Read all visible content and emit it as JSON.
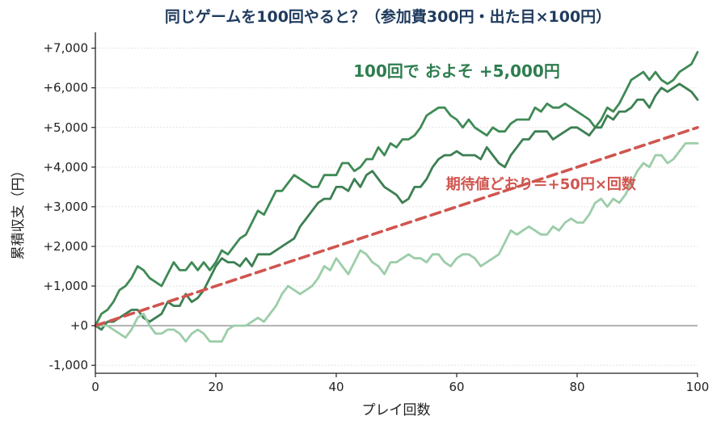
{
  "chart_data": {
    "type": "line",
    "title": "同じゲームを100回やると？（参加費300円・出た目×100円）",
    "xlabel": "プレイ回数",
    "ylabel": "累積収支（円）",
    "xlim": [
      0,
      100
    ],
    "ylim": [
      -1200,
      7400
    ],
    "grid": "y-dotted",
    "x_ticks": [
      0,
      20,
      40,
      60,
      80,
      100
    ],
    "x_tick_labels": [
      "0",
      "20",
      "40",
      "60",
      "80",
      "100"
    ],
    "y_ticks": [
      -1000,
      0,
      1000,
      2000,
      3000,
      4000,
      5000,
      6000,
      7000
    ],
    "y_tick_labels": [
      "-1,000",
      "+0",
      "+1,000",
      "+2,000",
      "+3,000",
      "+4,000",
      "+5,000",
      "+6,000",
      "+7,000"
    ],
    "annotations": [
      {
        "text": "100回で およそ +5,000円",
        "x": 60,
        "y": 6280,
        "color": "#2e7d4f"
      },
      {
        "text": "期待値どおり＝+50円×回数",
        "x": 74,
        "y": 3450,
        "color": "#d0554f"
      }
    ],
    "series": [
      {
        "name": "",
        "color": "#3f8a55",
        "x": [
          0,
          1,
          2,
          3,
          4,
          5,
          6,
          7,
          8,
          9,
          10,
          11,
          12,
          13,
          14,
          15,
          16,
          17,
          18,
          19,
          20,
          21,
          22,
          23,
          24,
          25,
          26,
          27,
          28,
          29,
          30,
          31,
          32,
          33,
          34,
          35,
          36,
          37,
          38,
          39,
          40,
          41,
          42,
          43,
          44,
          45,
          46,
          47,
          48,
          49,
          50,
          51,
          52,
          53,
          54,
          55,
          56,
          57,
          58,
          59,
          60,
          61,
          62,
          63,
          64,
          65,
          66,
          67,
          68,
          69,
          70,
          71,
          72,
          73,
          74,
          75,
          76,
          77,
          78,
          79,
          80,
          81,
          82,
          83,
          84,
          85,
          86,
          87,
          88,
          89,
          90,
          91,
          92,
          93,
          94,
          95,
          96,
          97,
          98,
          99,
          100
        ],
        "values": [
          0,
          300,
          400,
          600,
          900,
          1000,
          1200,
          1500,
          1400,
          1200,
          1100,
          1000,
          1300,
          1600,
          1400,
          1400,
          1600,
          1400,
          1600,
          1400,
          1600,
          1900,
          1800,
          2000,
          2200,
          2300,
          2600,
          2900,
          2800,
          3100,
          3400,
          3400,
          3600,
          3800,
          3700,
          3600,
          3500,
          3500,
          3800,
          3800,
          3800,
          4100,
          4100,
          3900,
          4000,
          4200,
          4200,
          4500,
          4300,
          4600,
          4500,
          4700,
          4700,
          4800,
          5000,
          5300,
          5400,
          5500,
          5500,
          5300,
          5200,
          5000,
          5200,
          5000,
          4900,
          4800,
          5000,
          4900,
          4900,
          5100,
          5200,
          5200,
          5200,
          5500,
          5400,
          5600,
          5500,
          5500,
          5600,
          5500,
          5400,
          5300,
          5200,
          5000,
          5200,
          5500,
          5400,
          5600,
          5900,
          6200,
          6300,
          6400,
          6200,
          6400,
          6200,
          6100,
          6200,
          6400,
          6500,
          6600,
          6900
        ]
      },
      {
        "name": "",
        "color": "#3c7f52",
        "x": [
          0,
          1,
          2,
          3,
          4,
          5,
          6,
          7,
          8,
          9,
          10,
          11,
          12,
          13,
          14,
          15,
          16,
          17,
          18,
          19,
          20,
          21,
          22,
          23,
          24,
          25,
          26,
          27,
          28,
          29,
          30,
          31,
          32,
          33,
          34,
          35,
          36,
          37,
          38,
          39,
          40,
          41,
          42,
          43,
          44,
          45,
          46,
          47,
          48,
          49,
          50,
          51,
          52,
          53,
          54,
          55,
          56,
          57,
          58,
          59,
          60,
          61,
          62,
          63,
          64,
          65,
          66,
          67,
          68,
          69,
          70,
          71,
          72,
          73,
          74,
          75,
          76,
          77,
          78,
          79,
          80,
          81,
          82,
          83,
          84,
          85,
          86,
          87,
          88,
          89,
          90,
          91,
          92,
          93,
          94,
          95,
          96,
          97,
          98,
          99,
          100
        ],
        "values": [
          0,
          -100,
          100,
          100,
          200,
          300,
          400,
          400,
          200,
          100,
          200,
          300,
          600,
          500,
          500,
          800,
          600,
          700,
          900,
          1200,
          1500,
          1700,
          1600,
          1600,
          1500,
          1700,
          1500,
          1800,
          1800,
          1800,
          1900,
          2000,
          2100,
          2200,
          2500,
          2700,
          2900,
          3100,
          3200,
          3200,
          3500,
          3500,
          3400,
          3700,
          3500,
          3800,
          3900,
          3700,
          3500,
          3400,
          3300,
          3100,
          3200,
          3500,
          3500,
          3700,
          4000,
          4200,
          4300,
          4300,
          4400,
          4300,
          4300,
          4300,
          4200,
          4500,
          4300,
          4100,
          4000,
          4300,
          4500,
          4700,
          4700,
          4900,
          4900,
          4900,
          4700,
          4800,
          4900,
          5000,
          5000,
          4900,
          4800,
          5000,
          5000,
          5300,
          5200,
          5400,
          5400,
          5500,
          5700,
          5700,
          5500,
          5800,
          6000,
          5900,
          6000,
          6100,
          6000,
          5900,
          5700
        ]
      },
      {
        "name": "",
        "color": "#9ccda9",
        "x": [
          0,
          1,
          2,
          3,
          4,
          5,
          6,
          7,
          8,
          9,
          10,
          11,
          12,
          13,
          14,
          15,
          16,
          17,
          18,
          19,
          20,
          21,
          22,
          23,
          24,
          25,
          26,
          27,
          28,
          29,
          30,
          31,
          32,
          33,
          34,
          35,
          36,
          37,
          38,
          39,
          40,
          41,
          42,
          43,
          44,
          45,
          46,
          47,
          48,
          49,
          50,
          51,
          52,
          53,
          54,
          55,
          56,
          57,
          58,
          59,
          60,
          61,
          62,
          63,
          64,
          65,
          66,
          67,
          68,
          69,
          70,
          71,
          72,
          73,
          74,
          75,
          76,
          77,
          78,
          79,
          80,
          81,
          82,
          83,
          84,
          85,
          86,
          87,
          88,
          89,
          90,
          91,
          92,
          93,
          94,
          95,
          96,
          97,
          98,
          99,
          100
        ],
        "values": [
          0,
          0,
          0,
          -100,
          -200,
          -300,
          -100,
          200,
          300,
          0,
          -200,
          -200,
          -100,
          -100,
          -200,
          -400,
          -200,
          -100,
          -200,
          -400,
          -400,
          -400,
          -100,
          0,
          0,
          0,
          100,
          200,
          100,
          300,
          500,
          800,
          1000,
          900,
          800,
          900,
          1000,
          1200,
          1500,
          1400,
          1700,
          1500,
          1300,
          1600,
          1900,
          1800,
          1600,
          1500,
          1300,
          1600,
          1600,
          1700,
          1800,
          1700,
          1700,
          1600,
          1800,
          1800,
          1600,
          1500,
          1700,
          1800,
          1800,
          1700,
          1500,
          1600,
          1700,
          1800,
          2100,
          2400,
          2300,
          2400,
          2500,
          2400,
          2300,
          2300,
          2500,
          2400,
          2600,
          2700,
          2600,
          2600,
          2800,
          3100,
          3200,
          3000,
          3200,
          3100,
          3300,
          3600,
          3900,
          4100,
          4000,
          4300,
          4300,
          4100,
          4200,
          4400,
          4600,
          4600,
          4600
        ]
      },
      {
        "name": "",
        "color": "#d0554f",
        "style": "dashed",
        "x": [
          0,
          100
        ],
        "values": [
          0,
          5000
        ]
      }
    ]
  }
}
